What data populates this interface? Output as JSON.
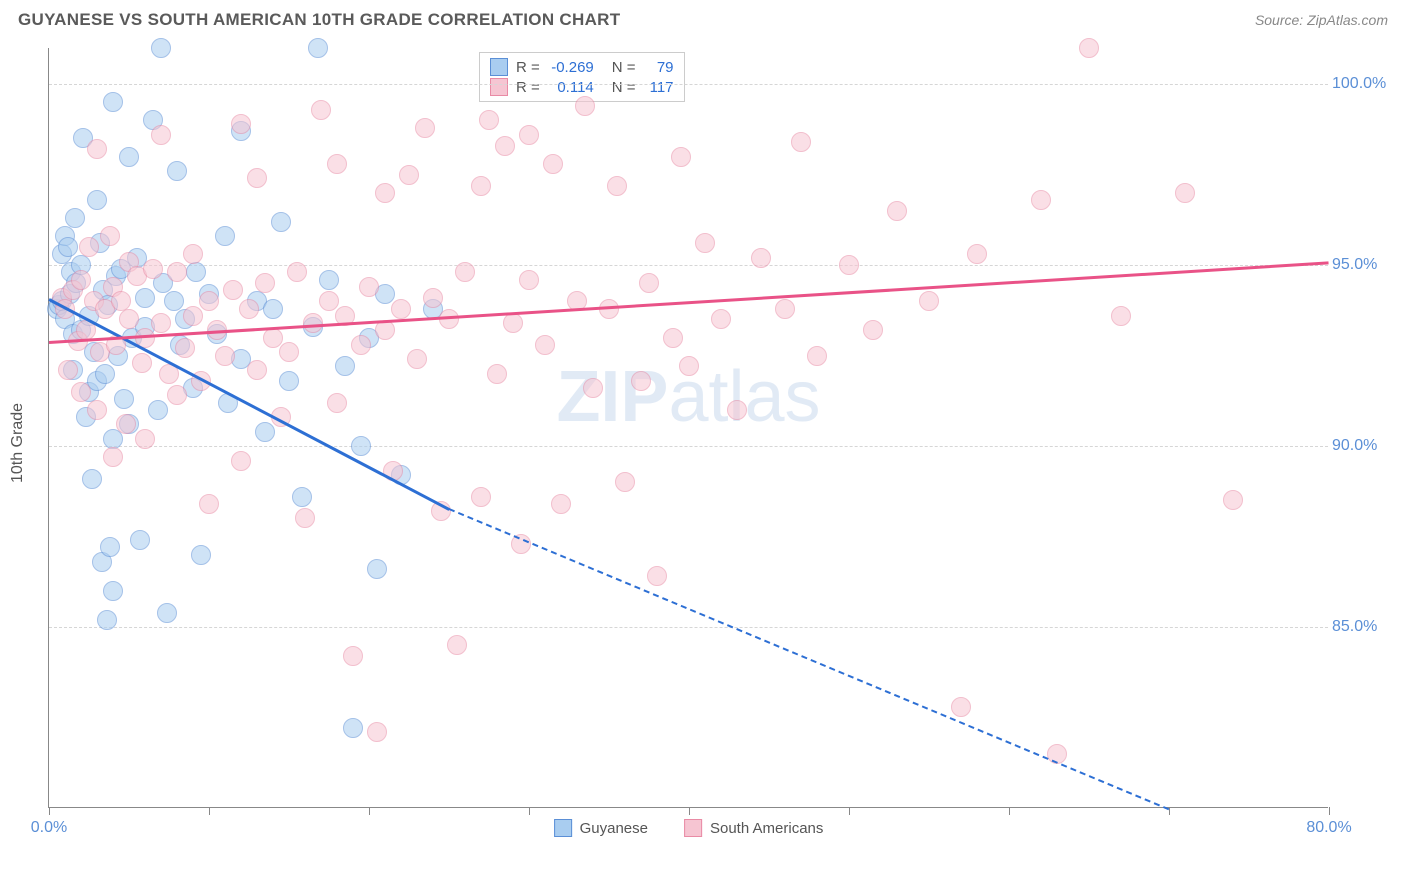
{
  "header": {
    "title": "GUYANESE VS SOUTH AMERICAN 10TH GRADE CORRELATION CHART",
    "source": "Source: ZipAtlas.com"
  },
  "chart": {
    "type": "scatter",
    "ylabel": "10th Grade",
    "watermark_a": "ZIP",
    "watermark_b": "atlas",
    "xlim": [
      0,
      80
    ],
    "ylim": [
      80,
      101
    ],
    "x_ticks": [
      0,
      10,
      20,
      30,
      40,
      50,
      60,
      70,
      80
    ],
    "x_tick_labels": {
      "0": "0.0%",
      "80": "80.0%"
    },
    "y_ticks": [
      85,
      90,
      95,
      100
    ],
    "y_tick_labels": [
      "85.0%",
      "90.0%",
      "95.0%",
      "100.0%"
    ],
    "background_color": "#ffffff",
    "grid_color": "#d6d6d6",
    "axis_color": "#888888",
    "label_color": "#5b8fd6",
    "point_radius": 10,
    "point_opacity": 0.55,
    "series": [
      {
        "name": "Guyanese",
        "fill": "#a9cdf0",
        "stroke": "#5b8fd6",
        "trend_color": "#2d6fd4",
        "R": "-0.269",
        "N": "79",
        "trend": {
          "x1": 0,
          "y1": 94.1,
          "x2": 25,
          "y2": 88.3,
          "dashed_to_x": 70,
          "dashed_to_y": 80.0
        },
        "points": [
          [
            0.5,
            93.8
          ],
          [
            0.6,
            93.9
          ],
          [
            0.8,
            94.0
          ],
          [
            0.8,
            95.3
          ],
          [
            1.0,
            93.5
          ],
          [
            1.0,
            95.8
          ],
          [
            1.2,
            95.5
          ],
          [
            1.3,
            94.2
          ],
          [
            1.4,
            94.8
          ],
          [
            1.5,
            92.1
          ],
          [
            1.5,
            93.1
          ],
          [
            1.6,
            96.3
          ],
          [
            1.7,
            94.5
          ],
          [
            2.0,
            95.0
          ],
          [
            2.0,
            93.2
          ],
          [
            2.1,
            98.5
          ],
          [
            2.3,
            90.8
          ],
          [
            2.5,
            91.5
          ],
          [
            2.5,
            93.6
          ],
          [
            2.7,
            89.1
          ],
          [
            2.8,
            92.6
          ],
          [
            3.0,
            91.8
          ],
          [
            3.0,
            96.8
          ],
          [
            3.2,
            95.6
          ],
          [
            3.3,
            86.8
          ],
          [
            3.4,
            94.3
          ],
          [
            3.5,
            92.0
          ],
          [
            3.6,
            85.2
          ],
          [
            3.7,
            93.9
          ],
          [
            3.8,
            87.2
          ],
          [
            4.0,
            90.2
          ],
          [
            4.0,
            86.0
          ],
          [
            4.0,
            99.5
          ],
          [
            4.2,
            94.7
          ],
          [
            4.3,
            92.5
          ],
          [
            4.5,
            94.9
          ],
          [
            4.7,
            91.3
          ],
          [
            5.0,
            90.6
          ],
          [
            5.0,
            98.0
          ],
          [
            5.2,
            93.0
          ],
          [
            5.5,
            95.2
          ],
          [
            5.7,
            87.4
          ],
          [
            6.0,
            93.3
          ],
          [
            6.0,
            94.1
          ],
          [
            6.5,
            99.0
          ],
          [
            6.8,
            91.0
          ],
          [
            7.0,
            101.0
          ],
          [
            7.1,
            94.5
          ],
          [
            7.4,
            85.4
          ],
          [
            7.8,
            94.0
          ],
          [
            8.0,
            97.6
          ],
          [
            8.2,
            92.8
          ],
          [
            8.5,
            93.5
          ],
          [
            9.0,
            91.6
          ],
          [
            9.2,
            94.8
          ],
          [
            9.5,
            87.0
          ],
          [
            10.0,
            94.2
          ],
          [
            10.5,
            93.1
          ],
          [
            11.0,
            95.8
          ],
          [
            11.2,
            91.2
          ],
          [
            12.0,
            92.4
          ],
          [
            12.0,
            98.7
          ],
          [
            13.0,
            94.0
          ],
          [
            13.5,
            90.4
          ],
          [
            14.0,
            93.8
          ],
          [
            14.5,
            96.2
          ],
          [
            15.0,
            91.8
          ],
          [
            15.8,
            88.6
          ],
          [
            16.5,
            93.3
          ],
          [
            16.8,
            101.0
          ],
          [
            17.5,
            94.6
          ],
          [
            18.5,
            92.2
          ],
          [
            19.0,
            82.2
          ],
          [
            19.5,
            90.0
          ],
          [
            20.0,
            93.0
          ],
          [
            20.5,
            86.6
          ],
          [
            21.0,
            94.2
          ],
          [
            22.0,
            89.2
          ],
          [
            24.0,
            93.8
          ]
        ]
      },
      {
        "name": "South Americans",
        "fill": "#f6c5d2",
        "stroke": "#e98ba5",
        "trend_color": "#e95287",
        "R": "0.114",
        "N": "117",
        "trend": {
          "x1": 0,
          "y1": 92.9,
          "x2": 80,
          "y2": 95.1
        },
        "points": [
          [
            0.8,
            94.1
          ],
          [
            1.0,
            93.8
          ],
          [
            1.2,
            92.1
          ],
          [
            1.5,
            94.3
          ],
          [
            1.8,
            92.9
          ],
          [
            2.0,
            91.5
          ],
          [
            2.0,
            94.6
          ],
          [
            2.3,
            93.2
          ],
          [
            2.5,
            95.5
          ],
          [
            2.8,
            94.0
          ],
          [
            3.0,
            91.0
          ],
          [
            3.0,
            98.2
          ],
          [
            3.2,
            92.6
          ],
          [
            3.5,
            93.8
          ],
          [
            3.8,
            95.8
          ],
          [
            4.0,
            94.4
          ],
          [
            4.0,
            89.7
          ],
          [
            4.2,
            92.8
          ],
          [
            4.5,
            94.0
          ],
          [
            4.8,
            90.6
          ],
          [
            5.0,
            93.5
          ],
          [
            5.0,
            95.1
          ],
          [
            5.5,
            94.7
          ],
          [
            5.8,
            92.3
          ],
          [
            6.0,
            93.0
          ],
          [
            6.0,
            90.2
          ],
          [
            6.5,
            94.9
          ],
          [
            7.0,
            93.4
          ],
          [
            7.0,
            98.6
          ],
          [
            7.5,
            92.0
          ],
          [
            8.0,
            91.4
          ],
          [
            8.0,
            94.8
          ],
          [
            8.5,
            92.7
          ],
          [
            9.0,
            93.6
          ],
          [
            9.0,
            95.3
          ],
          [
            9.5,
            91.8
          ],
          [
            10.0,
            94.0
          ],
          [
            10.0,
            88.4
          ],
          [
            10.5,
            93.2
          ],
          [
            11.0,
            92.5
          ],
          [
            11.5,
            94.3
          ],
          [
            12.0,
            89.6
          ],
          [
            12.0,
            98.9
          ],
          [
            12.5,
            93.8
          ],
          [
            13.0,
            92.1
          ],
          [
            13.0,
            97.4
          ],
          [
            13.5,
            94.5
          ],
          [
            14.0,
            93.0
          ],
          [
            14.5,
            90.8
          ],
          [
            15.0,
            92.6
          ],
          [
            15.5,
            94.8
          ],
          [
            16.0,
            88.0
          ],
          [
            16.5,
            93.4
          ],
          [
            17.0,
            99.3
          ],
          [
            17.5,
            94.0
          ],
          [
            18.0,
            97.8
          ],
          [
            18.0,
            91.2
          ],
          [
            18.5,
            93.6
          ],
          [
            19.0,
            84.2
          ],
          [
            19.5,
            92.8
          ],
          [
            20.0,
            94.4
          ],
          [
            20.5,
            82.1
          ],
          [
            21.0,
            93.2
          ],
          [
            21.0,
            97.0
          ],
          [
            21.5,
            89.3
          ],
          [
            22.0,
            93.8
          ],
          [
            22.5,
            97.5
          ],
          [
            23.0,
            92.4
          ],
          [
            23.5,
            98.8
          ],
          [
            24.0,
            94.1
          ],
          [
            24.5,
            88.2
          ],
          [
            25.0,
            93.5
          ],
          [
            25.5,
            84.5
          ],
          [
            26.0,
            94.8
          ],
          [
            27.0,
            97.2
          ],
          [
            27.0,
            88.6
          ],
          [
            27.5,
            99.0
          ],
          [
            28.0,
            92.0
          ],
          [
            28.5,
            98.3
          ],
          [
            29.0,
            93.4
          ],
          [
            29.5,
            87.3
          ],
          [
            30.0,
            94.6
          ],
          [
            30.0,
            98.6
          ],
          [
            31.0,
            92.8
          ],
          [
            31.5,
            97.8
          ],
          [
            32.0,
            88.4
          ],
          [
            33.0,
            94.0
          ],
          [
            33.5,
            99.4
          ],
          [
            34.0,
            91.6
          ],
          [
            35.0,
            93.8
          ],
          [
            35.5,
            97.2
          ],
          [
            36.0,
            89.0
          ],
          [
            37.0,
            91.8
          ],
          [
            37.5,
            94.5
          ],
          [
            38.0,
            86.4
          ],
          [
            39.0,
            93.0
          ],
          [
            39.5,
            98.0
          ],
          [
            40.0,
            92.2
          ],
          [
            41.0,
            95.6
          ],
          [
            42.0,
            93.5
          ],
          [
            43.0,
            91.0
          ],
          [
            44.5,
            95.2
          ],
          [
            46.0,
            93.8
          ],
          [
            47.0,
            98.4
          ],
          [
            48.0,
            92.5
          ],
          [
            50.0,
            95.0
          ],
          [
            51.5,
            93.2
          ],
          [
            53.0,
            96.5
          ],
          [
            55.0,
            94.0
          ],
          [
            57.0,
            82.8
          ],
          [
            58.0,
            95.3
          ],
          [
            62.0,
            96.8
          ],
          [
            63.0,
            81.5
          ],
          [
            65.0,
            101.0
          ],
          [
            67.0,
            93.6
          ],
          [
            71.0,
            97.0
          ],
          [
            74.0,
            88.5
          ]
        ]
      }
    ],
    "legend_top": {
      "rows": [
        {
          "sq_fill": "#a9cdf0",
          "sq_stroke": "#5b8fd6",
          "r_label": "R =",
          "r_val": "-0.269",
          "n_label": "N =",
          "n_val": "79"
        },
        {
          "sq_fill": "#f6c5d2",
          "sq_stroke": "#e98ba5",
          "r_label": "R =",
          "r_val": "0.114",
          "n_label": "N =",
          "n_val": "117"
        }
      ]
    },
    "legend_bottom": [
      {
        "sq_fill": "#a9cdf0",
        "sq_stroke": "#5b8fd6",
        "label": "Guyanese"
      },
      {
        "sq_fill": "#f6c5d2",
        "sq_stroke": "#e98ba5",
        "label": "South Americans"
      }
    ]
  }
}
